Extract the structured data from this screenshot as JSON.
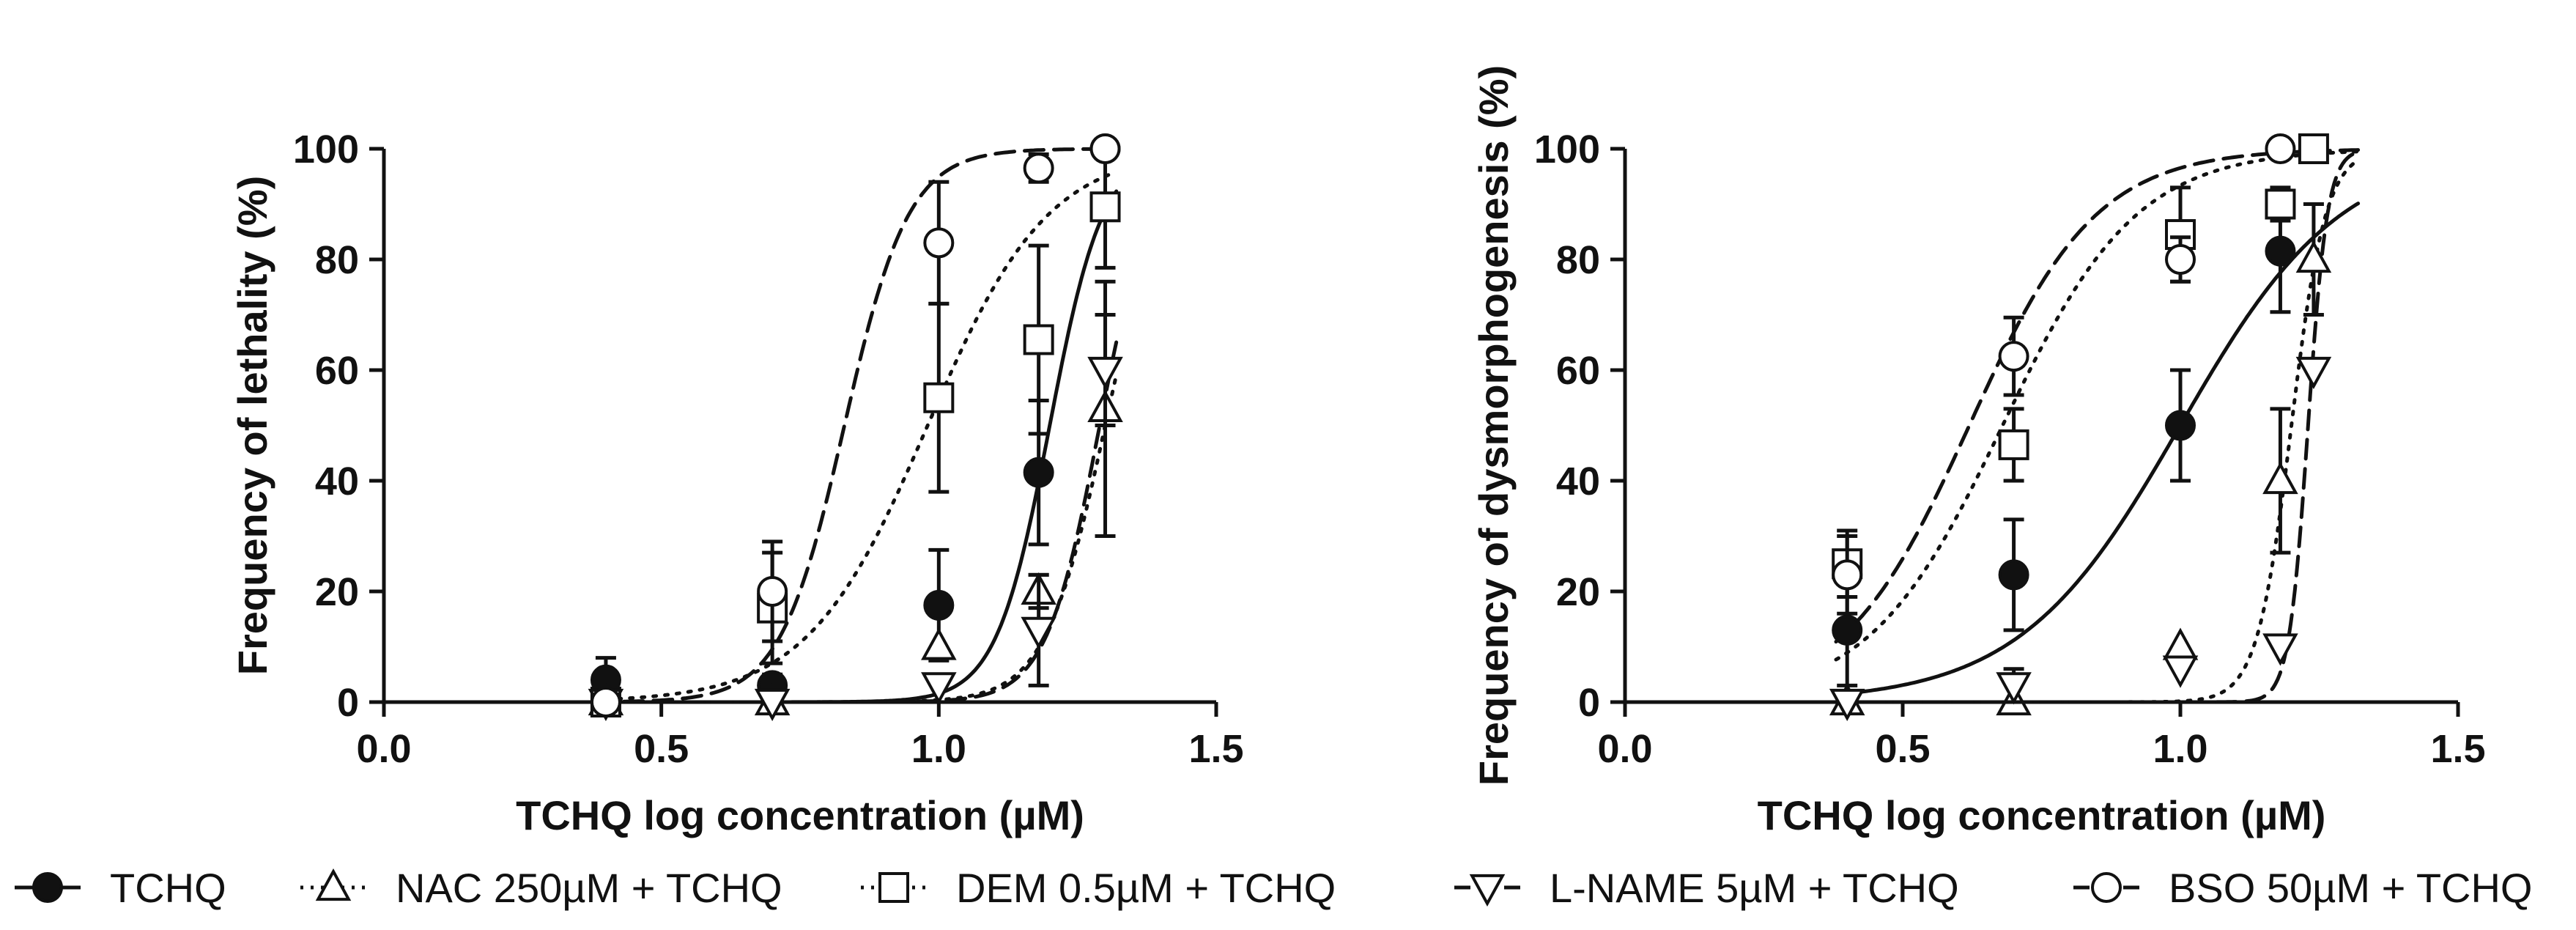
{
  "chart_data": [
    {
      "type": "scatter",
      "title": "",
      "xlabel": "TCHQ log concentration (µM)",
      "ylabel": "Frequency of lethality (%)",
      "xlim": [
        0,
        1.5
      ],
      "ylim": [
        0,
        100
      ],
      "xticks": [
        "0.0",
        "0.5",
        "1.0",
        "1.5"
      ],
      "yticks": [
        "0",
        "20",
        "40",
        "60",
        "80",
        "100"
      ],
      "series": [
        {
          "name": "TCHQ",
          "style": "solid",
          "marker": "circle-filled",
          "x": [
            0.4,
            0.7,
            1.0,
            1.18,
            1.3
          ],
          "y": [
            4,
            3,
            17.5,
            41.5,
            100
          ],
          "err": [
            4,
            2,
            10,
            13,
            0
          ],
          "fit": {
            "bottom": 0,
            "top": 100,
            "ec50log": 1.2,
            "slope": 9
          }
        },
        {
          "name": "NAC 250µM + TCHQ",
          "style": "dotted",
          "marker": "triangle-up",
          "x": [
            0.4,
            0.7,
            1.0,
            1.18,
            1.3
          ],
          "y": [
            0,
            0,
            10,
            20,
            53
          ],
          "err": [
            0,
            0,
            0,
            3,
            23
          ],
          "fit": {
            "bottom": 0,
            "top": 100,
            "ec50log": 1.3,
            "slope": 8
          }
        },
        {
          "name": "DEM 0.5µM + TCHQ",
          "style": "dotted",
          "marker": "square",
          "x": [
            0.4,
            0.7,
            1.0,
            1.18,
            1.3
          ],
          "y": [
            0,
            17,
            55,
            65.5,
            89.5
          ],
          "err": [
            0,
            10,
            17,
            17,
            11
          ],
          "fit": {
            "bottom": 0,
            "top": 100,
            "ec50log": 0.98,
            "slope": 4
          }
        },
        {
          "name": "L-NAME 5µM + TCHQ",
          "style": "dashed",
          "marker": "triangle-down",
          "x": [
            0.4,
            0.7,
            1.0,
            1.18,
            1.3
          ],
          "y": [
            0,
            0,
            3,
            13,
            60
          ],
          "err": [
            0,
            0,
            0,
            10,
            10
          ],
          "fit": {
            "bottom": 0,
            "top": 100,
            "ec50log": 1.29,
            "slope": 9
          }
        },
        {
          "name": "BSO 50µM + TCHQ",
          "style": "dashed",
          "marker": "circle-open",
          "x": [
            0.4,
            0.7,
            1.0,
            1.18,
            1.3
          ],
          "y": [
            0,
            20,
            83,
            96.5,
            100
          ],
          "err": [
            0,
            9,
            11,
            2.5,
            0
          ],
          "fit": {
            "bottom": 0,
            "top": 100,
            "ec50log": 0.83,
            "slope": 7.5
          }
        }
      ]
    },
    {
      "type": "scatter",
      "title": "",
      "xlabel": "TCHQ log concentration (µM)",
      "ylabel": "Frequency of dysmorphogenesis (%)",
      "xlim": [
        0,
        1.5
      ],
      "ylim": [
        0,
        100
      ],
      "xticks": [
        "0.0",
        "0.5",
        "1.0",
        "1.5"
      ],
      "yticks": [
        "0",
        "20",
        "40",
        "60",
        "80",
        "100"
      ],
      "series": [
        {
          "name": "TCHQ",
          "style": "solid",
          "marker": "circle-filled",
          "x": [
            0.4,
            0.7,
            1.0,
            1.18
          ],
          "y": [
            13,
            23,
            50,
            81.5
          ],
          "err": [
            10,
            10,
            10,
            11
          ],
          "fit": {
            "bottom": 0,
            "top": 100,
            "ec50log": 1.0,
            "slope": 3
          }
        },
        {
          "name": "NAC 250µM + TCHQ",
          "style": "dotted",
          "marker": "triangle-up",
          "x": [
            0.4,
            0.7,
            1.0,
            1.18,
            1.24
          ],
          "y": [
            0,
            0,
            10,
            40,
            80
          ],
          "err": [
            0,
            0,
            0,
            13,
            10
          ],
          "fit": {
            "bottom": 0,
            "top": 100,
            "ec50log": 1.2,
            "slope": 14
          }
        },
        {
          "name": "DEM 0.5µM + TCHQ",
          "style": "dotted",
          "marker": "square",
          "x": [
            0.4,
            0.7,
            1.0,
            1.18,
            1.24
          ],
          "y": [
            25,
            46.5,
            84.5,
            90,
            100
          ],
          "err": [
            6,
            6.5,
            8.5,
            3,
            0
          ],
          "fit": {
            "bottom": 0,
            "top": 100,
            "ec50log": 0.68,
            "slope": 3.6
          }
        },
        {
          "name": "L-NAME 5µM + TCHQ",
          "style": "dashed",
          "marker": "triangle-down",
          "x": [
            0.4,
            0.7,
            1.0,
            1.18,
            1.24
          ],
          "y": [
            0,
            3,
            6,
            10,
            60
          ],
          "err": [
            0,
            3,
            0,
            0,
            0
          ],
          "fit": {
            "bottom": 0,
            "top": 100,
            "ec50log": 1.23,
            "slope": 25
          }
        },
        {
          "name": "BSO 50µM + TCHQ",
          "style": "dashed",
          "marker": "circle-open",
          "x": [
            0.4,
            0.7,
            1.0,
            1.18
          ],
          "y": [
            23,
            62.5,
            80,
            100
          ],
          "err": [
            7,
            7,
            4,
            0
          ],
          "fit": {
            "bottom": 0,
            "top": 100,
            "ec50log": 0.62,
            "slope": 3.8
          }
        }
      ]
    }
  ],
  "legend": {
    "items": [
      {
        "label": "TCHQ",
        "style": "solid",
        "marker": "circle-filled"
      },
      {
        "label": "NAC 250µM + TCHQ",
        "style": "dotted",
        "marker": "triangle-up"
      },
      {
        "label": "DEM 0.5µM + TCHQ",
        "style": "dotted",
        "marker": "square"
      },
      {
        "label": "L-NAME 5µM + TCHQ",
        "style": "dashed",
        "marker": "triangle-down"
      },
      {
        "label": "BSO 50µM + TCHQ",
        "style": "dashed",
        "marker": "circle-open"
      }
    ]
  },
  "colors": {
    "ink": "#111111",
    "background": "#ffffff"
  }
}
